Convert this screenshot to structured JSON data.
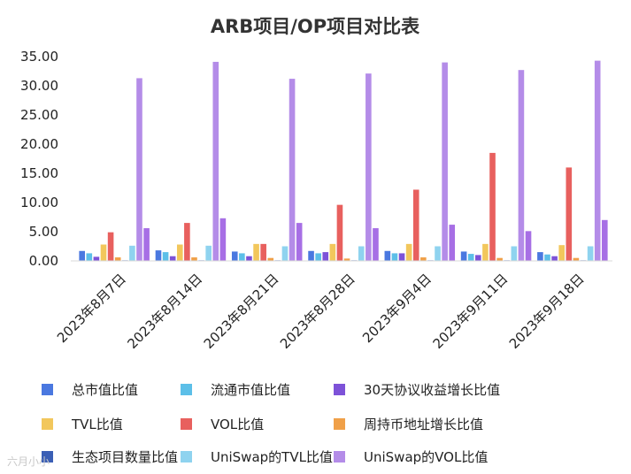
{
  "chart_data": {
    "type": "bar",
    "title": "ARB项目/OP项目对比表",
    "xlabel": "",
    "ylabel": "",
    "ylim": [
      0,
      35
    ],
    "yticks": [
      "0.00",
      "5.00",
      "10.00",
      "15.00",
      "20.00",
      "25.00",
      "30.00",
      "35.00"
    ],
    "grid": false,
    "legend_position": "bottom",
    "categories": [
      "2023年8月7日",
      "2023年8月14日",
      "2023年8月21日",
      "2023年8月28日",
      "2023年9月4日",
      "2023年9月11日",
      "2023年9月18日"
    ],
    "series": [
      {
        "name": "总市值比值",
        "color": "#4a78e0",
        "values": [
          1.7,
          1.8,
          1.6,
          1.7,
          1.7,
          1.6,
          1.5
        ]
      },
      {
        "name": "流通市值比值",
        "color": "#5cbfe8",
        "values": [
          1.3,
          1.5,
          1.3,
          1.3,
          1.3,
          1.2,
          1.1
        ]
      },
      {
        "name": "30天协议收益增长比值",
        "color": "#7d52d8",
        "values": [
          0.7,
          0.8,
          0.8,
          1.5,
          1.3,
          1.0,
          0.8
        ]
      },
      {
        "name": "TVL比值",
        "color": "#f2c75c",
        "values": [
          2.8,
          2.8,
          2.9,
          2.9,
          2.9,
          2.9,
          2.7
        ]
      },
      {
        "name": "VOL比值",
        "color": "#e8605e",
        "values": [
          4.9,
          6.5,
          2.9,
          9.6,
          12.2,
          18.5,
          16.0
        ]
      },
      {
        "name": "周持币地址增长比值",
        "color": "#f0a048",
        "values": [
          0.6,
          0.6,
          0.5,
          0.4,
          0.6,
          0.5,
          0.5
        ]
      },
      {
        "name": "生态项目数量比值",
        "color": "#3b5fb5",
        "values": [
          0.1,
          0.1,
          0.1,
          0.1,
          0.1,
          0.1,
          0.1
        ]
      },
      {
        "name": "UniSwap的TVL比值",
        "color": "#8fd3ef",
        "values": [
          2.6,
          2.6,
          2.5,
          2.5,
          2.5,
          2.5,
          2.5
        ]
      },
      {
        "name": "UniSwap的VOL比值",
        "color": "#b48ce8",
        "values": [
          31.3,
          34.1,
          31.2,
          32.1,
          34.0,
          32.7,
          34.3
        ]
      },
      {
        "name": "",
        "color": "#a76fe5",
        "values": [
          5.6,
          7.3,
          6.5,
          5.6,
          6.2,
          5.1,
          7.0
        ]
      }
    ],
    "watermark": "六月小小"
  }
}
